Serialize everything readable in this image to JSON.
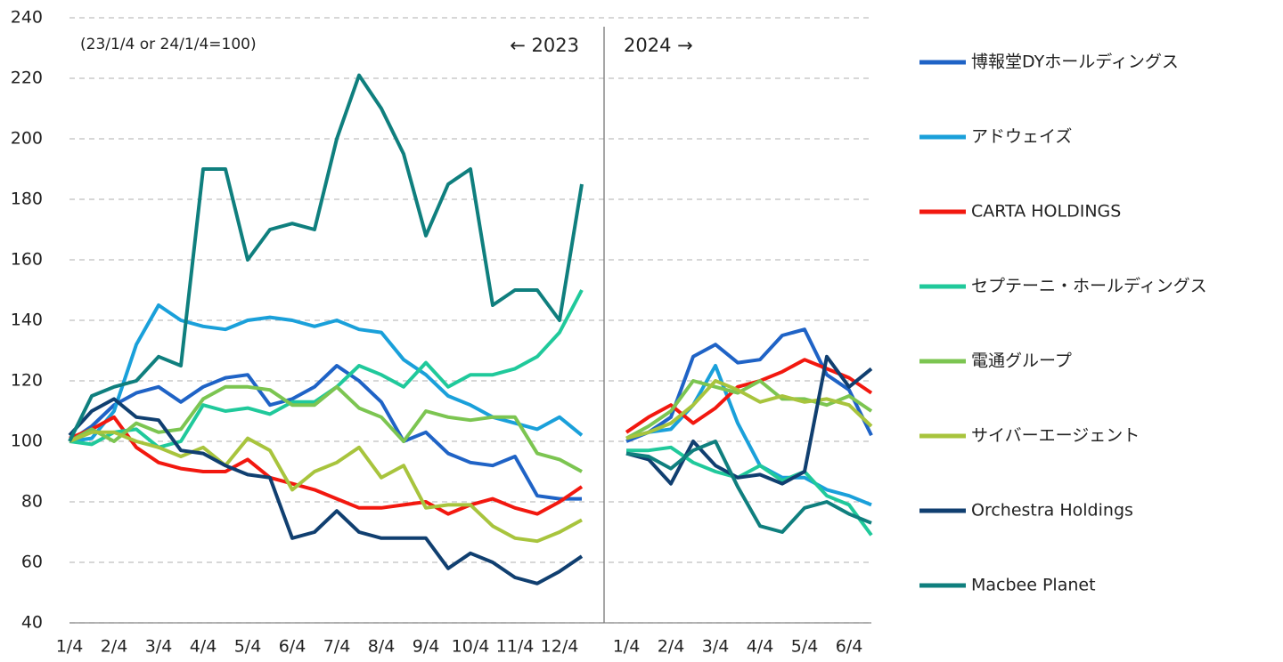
{
  "chart_data": {
    "type": "line",
    "note": "(23/1/4 or 24/1/4=100)",
    "annotations": [
      "← 2023",
      "2024 →"
    ],
    "categories": [
      "1/4",
      null,
      "2/4",
      null,
      "3/4",
      null,
      "4/4",
      null,
      "5/4",
      null,
      "6/4",
      null,
      "7/4",
      null,
      "8/4",
      null,
      "9/4",
      null,
      "10/4",
      null,
      "11/4",
      null,
      "12/4",
      null,
      null,
      "1/4",
      null,
      "2/4",
      null,
      "3/4",
      null,
      "4/4",
      null,
      "5/4",
      null,
      "6/4",
      null
    ],
    "ylim": [
      40,
      240
    ],
    "yticks": [
      40,
      60,
      80,
      100,
      120,
      140,
      160,
      180,
      200,
      220,
      240
    ],
    "grid": true,
    "legend": "right",
    "series": [
      {
        "name": "博報堂DYホールディングス",
        "color": "#1f63c6",
        "values": [
          100,
          105,
          112,
          116,
          118,
          113,
          118,
          121,
          122,
          112,
          114,
          118,
          125,
          120,
          113,
          100,
          103,
          96,
          93,
          92,
          95,
          82,
          81,
          81,
          null,
          100,
          103,
          108,
          128,
          132,
          126,
          127,
          135,
          137,
          122,
          117,
          102
        ]
      },
      {
        "name": "アドウェイズ",
        "color": "#1aa0da",
        "values": [
          100,
          101,
          110,
          132,
          145,
          140,
          138,
          137,
          140,
          141,
          140,
          138,
          140,
          137,
          136,
          127,
          122,
          115,
          112,
          108,
          106,
          104,
          108,
          102,
          null,
          101,
          103,
          104,
          112,
          125,
          106,
          92,
          88,
          88,
          84,
          82,
          79
        ]
      },
      {
        "name": "CARTA HOLDINGS",
        "color": "#f2180f",
        "values": [
          101,
          104,
          108,
          98,
          93,
          91,
          90,
          90,
          94,
          88,
          86,
          84,
          81,
          78,
          78,
          79,
          80,
          76,
          79,
          81,
          78,
          76,
          80,
          85,
          null,
          103,
          108,
          112,
          106,
          111,
          118,
          120,
          123,
          127,
          124,
          121,
          116
        ]
      },
      {
        "name": "セプテーニ・ホールディングス",
        "color": "#20c99b",
        "values": [
          100,
          99,
          103,
          104,
          98,
          100,
          112,
          110,
          111,
          109,
          113,
          113,
          118,
          125,
          122,
          118,
          126,
          118,
          122,
          122,
          124,
          128,
          136,
          150,
          null,
          97,
          97,
          98,
          93,
          90,
          88,
          92,
          87,
          90,
          82,
          79,
          69
        ]
      },
      {
        "name": "電通グループ",
        "color": "#7cc551",
        "values": [
          100,
          104,
          100,
          106,
          103,
          104,
          114,
          118,
          118,
          117,
          112,
          112,
          118,
          111,
          108,
          100,
          110,
          108,
          107,
          108,
          108,
          96,
          94,
          90,
          null,
          101,
          105,
          110,
          120,
          118,
          116,
          120,
          114,
          114,
          112,
          115,
          110
        ]
      },
      {
        "name": "サイバーエージェント",
        "color": "#a8c43d",
        "values": [
          100,
          103,
          103,
          100,
          98,
          95,
          98,
          92,
          101,
          97,
          84,
          90,
          93,
          98,
          88,
          92,
          78,
          79,
          79,
          72,
          68,
          67,
          70,
          74,
          null,
          101,
          103,
          106,
          112,
          120,
          117,
          113,
          115,
          113,
          114,
          112,
          105
        ]
      },
      {
        "name": "Orchestra Holdings",
        "color": "#103f70",
        "values": [
          102,
          110,
          114,
          108,
          107,
          97,
          96,
          92,
          89,
          88,
          68,
          70,
          77,
          70,
          68,
          68,
          68,
          58,
          63,
          60,
          55,
          53,
          57,
          62,
          null,
          96,
          94,
          86,
          100,
          92,
          88,
          89,
          86,
          90,
          128,
          118,
          124
        ]
      },
      {
        "name": "Macbee Planet",
        "color": "#0f7f7e",
        "values": [
          100,
          115,
          118,
          120,
          128,
          125,
          190,
          190,
          160,
          170,
          172,
          170,
          200,
          221,
          210,
          195,
          168,
          185,
          190,
          145,
          150,
          150,
          140,
          185,
          null,
          96,
          95,
          91,
          97,
          100,
          85,
          72,
          70,
          78,
          80,
          76,
          73
        ]
      }
    ]
  }
}
